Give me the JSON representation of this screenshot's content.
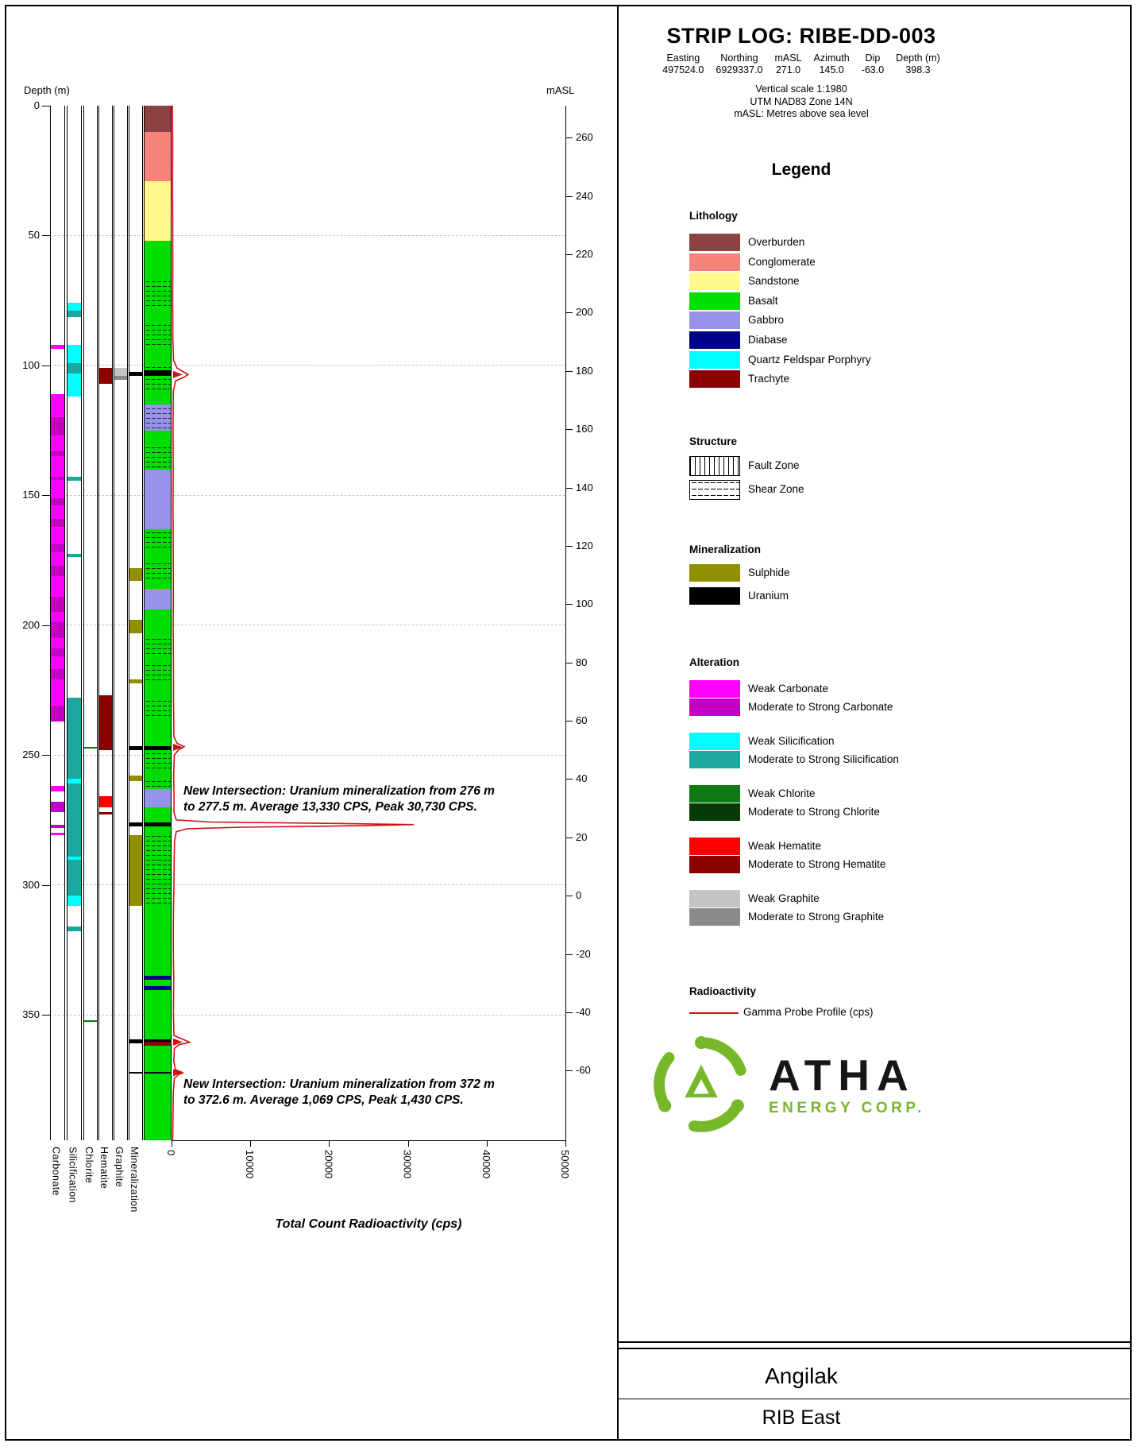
{
  "header": {
    "title": "STRIP LOG: RIBE-DD-003",
    "coords": [
      {
        "label": "Easting",
        "value": "497524.0"
      },
      {
        "label": "Northing",
        "value": "6929337.0"
      },
      {
        "label": "mASL",
        "value": "271.0"
      },
      {
        "label": "Azimuth",
        "value": "145.0"
      },
      {
        "label": "Dip",
        "value": "-63.0"
      },
      {
        "label": "Depth (m)",
        "value": "398.3"
      }
    ],
    "notes": [
      "Vertical scale 1:1980",
      "UTM NAD83 Zone 14N",
      "mASL: Metres above sea level"
    ]
  },
  "legend": {
    "title": "Legend",
    "lithology": {
      "header": "Lithology",
      "items": [
        {
          "label": "Overburden",
          "color": "#8C4243"
        },
        {
          "label": "Conglomerate",
          "color": "#F8837C"
        },
        {
          "label": "Sandstone",
          "color": "#FFF98E"
        },
        {
          "label": "Basalt",
          "color": "#00DD00"
        },
        {
          "label": "Gabbro",
          "color": "#9693E8"
        },
        {
          "label": "Diabase",
          "color": "#00008B"
        },
        {
          "label": "Quartz Feldspar Porphyry",
          "color": "#00FFFF"
        },
        {
          "label": "Trachyte",
          "color": "#8B0000"
        }
      ]
    },
    "structure": {
      "header": "Structure",
      "items": [
        {
          "label": "Fault Zone",
          "pattern": "fault"
        },
        {
          "label": "Shear Zone",
          "pattern": "shear"
        }
      ]
    },
    "mineralization": {
      "header": "Mineralization",
      "items": [
        {
          "label": "Sulphide",
          "color": "#8F8F00"
        },
        {
          "label": "Uranium",
          "color": "#000000"
        }
      ]
    },
    "alteration": {
      "header": "Alteration",
      "pairs": [
        {
          "key": "carbonate",
          "weak_label": "Weak Carbonate",
          "weak_color": "#FF00FF",
          "strong_label": "Moderate to Strong Carbonate",
          "strong_color": "#C300C3"
        },
        {
          "key": "silicification",
          "weak_label": "Weak Silicification",
          "weak_color": "#00FFFF",
          "strong_label": "Moderate to Strong Silicification",
          "strong_color": "#1CA79F"
        },
        {
          "key": "chlorite",
          "weak_label": "Weak Chlorite",
          "weak_color": "#0E7B12",
          "strong_label": "Moderate to Strong Chlorite",
          "strong_color": "#063A06"
        },
        {
          "key": "hematite",
          "weak_label": "Weak Hematite",
          "weak_color": "#FF0000",
          "strong_label": "Moderate to Strong Hematite",
          "strong_color": "#8B0000"
        },
        {
          "key": "graphite",
          "weak_label": "Weak Graphite",
          "weak_color": "#C4C4C4",
          "strong_label": "Moderate to Strong Graphite",
          "strong_color": "#8A8A8A"
        }
      ]
    },
    "radioactivity": {
      "header": "Radioactivity",
      "item_label": "Gamma Probe Profile (cps)",
      "line_color": "#CC1111"
    }
  },
  "logo": {
    "name": "ATHA",
    "subtitle": "ENERGY CORP.",
    "green": "#76B82A"
  },
  "footer": {
    "project": "Angilak",
    "area": "RIB East"
  },
  "chart_data": {
    "type": "strip-log",
    "depth_axis": {
      "label": "Depth (m)",
      "ticks": [
        0,
        50,
        100,
        150,
        200,
        250,
        300,
        350
      ],
      "max_depth": 398.3
    },
    "masl_axis": {
      "label": "mASL",
      "ticks": [
        260,
        240,
        220,
        200,
        180,
        160,
        140,
        120,
        100,
        80,
        60,
        40,
        20,
        0,
        -20,
        -40,
        -60
      ],
      "collar_masl": 271.0,
      "masl_per_m_depth": 0.891
    },
    "radioactivity_axis": {
      "label": "Total Count Radioactivity (cps)",
      "ticks": [
        0,
        10000,
        20000,
        30000,
        40000,
        50000
      ],
      "max": 50000
    },
    "track_labels": [
      "Carbonate",
      "Silicification",
      "Chlorite",
      "Hematite",
      "Graphite",
      "Mineralization"
    ],
    "lithology": [
      {
        "from": 0,
        "to": 10,
        "unit": "Overburden"
      },
      {
        "from": 10,
        "to": 29,
        "unit": "Conglomerate"
      },
      {
        "from": 29,
        "to": 52,
        "unit": "Sandstone"
      },
      {
        "from": 52,
        "to": 67,
        "unit": "Basalt"
      },
      {
        "from": 67,
        "to": 78,
        "unit": "Basalt",
        "shear": true
      },
      {
        "from": 78,
        "to": 84,
        "unit": "Basalt"
      },
      {
        "from": 84,
        "to": 93,
        "unit": "Basalt",
        "shear": true
      },
      {
        "from": 93,
        "to": 100,
        "unit": "Basalt"
      },
      {
        "from": 100,
        "to": 102,
        "unit": "Basalt",
        "shear": true
      },
      {
        "from": 102,
        "to": 104,
        "unit": "Uranium"
      },
      {
        "from": 104,
        "to": 110,
        "unit": "Basalt",
        "shear": true
      },
      {
        "from": 110,
        "to": 115,
        "unit": "Basalt"
      },
      {
        "from": 115,
        "to": 125,
        "unit": "Gabbro",
        "shear": true
      },
      {
        "from": 125,
        "to": 131,
        "unit": "Basalt"
      },
      {
        "from": 131,
        "to": 140,
        "unit": "Basalt",
        "shear": true
      },
      {
        "from": 140,
        "to": 163,
        "unit": "Gabbro"
      },
      {
        "from": 163,
        "to": 171,
        "unit": "Basalt",
        "shear": true
      },
      {
        "from": 171,
        "to": 175,
        "unit": "Basalt"
      },
      {
        "from": 175,
        "to": 183,
        "unit": "Basalt",
        "shear": true
      },
      {
        "from": 183,
        "to": 186,
        "unit": "Basalt"
      },
      {
        "from": 186,
        "to": 194,
        "unit": "Gabbro"
      },
      {
        "from": 194,
        "to": 204,
        "unit": "Basalt"
      },
      {
        "from": 204,
        "to": 212,
        "unit": "Basalt",
        "shear": true
      },
      {
        "from": 212,
        "to": 215,
        "unit": "Basalt"
      },
      {
        "from": 215,
        "to": 222,
        "unit": "Basalt",
        "shear": true
      },
      {
        "from": 222,
        "to": 228,
        "unit": "Basalt"
      },
      {
        "from": 228,
        "to": 236,
        "unit": "Basalt",
        "shear": true
      },
      {
        "from": 236,
        "to": 246.5,
        "unit": "Basalt"
      },
      {
        "from": 246.5,
        "to": 248,
        "unit": "Uranium"
      },
      {
        "from": 248,
        "to": 256,
        "unit": "Basalt",
        "shear": true
      },
      {
        "from": 256,
        "to": 260,
        "unit": "Basalt"
      },
      {
        "from": 260,
        "to": 263,
        "unit": "Basalt",
        "shear": true
      },
      {
        "from": 263,
        "to": 270,
        "unit": "Gabbro"
      },
      {
        "from": 270,
        "to": 276,
        "unit": "Basalt"
      },
      {
        "from": 276,
        "to": 277.5,
        "unit": "Uranium"
      },
      {
        "from": 277.5,
        "to": 281,
        "unit": "Basalt"
      },
      {
        "from": 281,
        "to": 308,
        "unit": "Basalt",
        "shear": true
      },
      {
        "from": 308,
        "to": 335,
        "unit": "Basalt"
      },
      {
        "from": 335,
        "to": 336.5,
        "unit": "Diabase"
      },
      {
        "from": 336.5,
        "to": 339,
        "unit": "Basalt"
      },
      {
        "from": 339,
        "to": 340.5,
        "unit": "Diabase"
      },
      {
        "from": 340.5,
        "to": 359.5,
        "unit": "Basalt"
      },
      {
        "from": 359.5,
        "to": 360.5,
        "unit": "Uranium"
      },
      {
        "from": 360.5,
        "to": 362,
        "unit": "Trachyte"
      },
      {
        "from": 362,
        "to": 372,
        "unit": "Basalt"
      },
      {
        "from": 372,
        "to": 372.6,
        "unit": "Uranium"
      },
      {
        "from": 372.6,
        "to": 398.3,
        "unit": "Basalt"
      }
    ],
    "tracks": {
      "carbonate": [
        {
          "from": 92,
          "to": 93.5,
          "grade": "weak"
        },
        {
          "from": 111,
          "to": 120,
          "grade": "weak"
        },
        {
          "from": 120,
          "to": 127,
          "grade": "strong"
        },
        {
          "from": 127,
          "to": 133,
          "grade": "weak"
        },
        {
          "from": 133,
          "to": 135,
          "grade": "strong"
        },
        {
          "from": 135,
          "to": 143,
          "grade": "weak"
        },
        {
          "from": 143,
          "to": 144.2,
          "grade": "strong"
        },
        {
          "from": 144.2,
          "to": 151,
          "grade": "weak"
        },
        {
          "from": 151,
          "to": 154,
          "grade": "strong"
        },
        {
          "from": 154,
          "to": 159,
          "grade": "weak"
        },
        {
          "from": 159,
          "to": 162,
          "grade": "strong"
        },
        {
          "from": 162,
          "to": 169,
          "grade": "weak"
        },
        {
          "from": 169,
          "to": 172,
          "grade": "strong"
        },
        {
          "from": 172,
          "to": 177,
          "grade": "weak"
        },
        {
          "from": 177,
          "to": 181,
          "grade": "strong"
        },
        {
          "from": 181,
          "to": 189,
          "grade": "weak"
        },
        {
          "from": 189,
          "to": 195,
          "grade": "strong"
        },
        {
          "from": 195,
          "to": 199,
          "grade": "weak"
        },
        {
          "from": 199,
          "to": 205,
          "grade": "strong"
        },
        {
          "from": 205,
          "to": 209,
          "grade": "weak"
        },
        {
          "from": 209,
          "to": 212,
          "grade": "strong"
        },
        {
          "from": 212,
          "to": 217,
          "grade": "weak"
        },
        {
          "from": 217,
          "to": 221,
          "grade": "strong"
        },
        {
          "from": 221,
          "to": 231,
          "grade": "weak"
        },
        {
          "from": 231,
          "to": 237,
          "grade": "strong"
        },
        {
          "from": 262,
          "to": 264,
          "grade": "weak"
        },
        {
          "from": 268,
          "to": 272,
          "grade": "strong"
        },
        {
          "from": 277,
          "to": 278,
          "grade": "strong"
        },
        {
          "from": 280,
          "to": 281,
          "grade": "weak"
        }
      ],
      "silicification": [
        {
          "from": 76,
          "to": 79,
          "grade": "weak"
        },
        {
          "from": 79,
          "to": 81.5,
          "grade": "strong"
        },
        {
          "from": 92,
          "to": 99,
          "grade": "weak"
        },
        {
          "from": 99,
          "to": 103,
          "grade": "strong"
        },
        {
          "from": 103,
          "to": 112,
          "grade": "weak"
        },
        {
          "from": 143,
          "to": 144.5,
          "grade": "strong"
        },
        {
          "from": 172.5,
          "to": 173.8,
          "grade": "strong"
        },
        {
          "from": 228,
          "to": 259,
          "grade": "strong"
        },
        {
          "from": 259,
          "to": 261,
          "grade": "weak"
        },
        {
          "from": 261,
          "to": 289,
          "grade": "strong"
        },
        {
          "from": 289,
          "to": 290.2,
          "grade": "weak"
        },
        {
          "from": 290.2,
          "to": 304,
          "grade": "strong"
        },
        {
          "from": 304,
          "to": 308,
          "grade": "weak"
        },
        {
          "from": 316,
          "to": 318,
          "grade": "strong"
        }
      ],
      "chlorite": [
        {
          "from": 247,
          "to": 247.6,
          "grade": "weak"
        },
        {
          "from": 352,
          "to": 352.6,
          "grade": "weak"
        }
      ],
      "hematite": [
        {
          "from": 101,
          "to": 107,
          "grade": "strong"
        },
        {
          "from": 227,
          "to": 248,
          "grade": "strong"
        },
        {
          "from": 266,
          "to": 270,
          "grade": "weak"
        },
        {
          "from": 272,
          "to": 273,
          "grade": "strong"
        }
      ],
      "graphite": [
        {
          "from": 101,
          "to": 104,
          "grade": "weak"
        },
        {
          "from": 104,
          "to": 105.5,
          "grade": "strong"
        }
      ],
      "mineralization": [
        {
          "from": 102.5,
          "to": 104,
          "kind": "uranium"
        },
        {
          "from": 178,
          "to": 183,
          "kind": "sulphide"
        },
        {
          "from": 198,
          "to": 203,
          "kind": "sulphide"
        },
        {
          "from": 221,
          "to": 222.5,
          "kind": "sulphide"
        },
        {
          "from": 246.5,
          "to": 248,
          "kind": "uranium"
        },
        {
          "from": 258,
          "to": 260,
          "kind": "sulphide"
        },
        {
          "from": 276,
          "to": 277.5,
          "kind": "uranium"
        },
        {
          "from": 281,
          "to": 308,
          "kind": "sulphide"
        },
        {
          "from": 359.5,
          "to": 361,
          "kind": "uranium"
        },
        {
          "from": 372,
          "to": 372.6,
          "kind": "uranium"
        }
      ]
    },
    "gamma_profile": [
      [
        0,
        120
      ],
      [
        15,
        150
      ],
      [
        30,
        130
      ],
      [
        45,
        150
      ],
      [
        60,
        160
      ],
      [
        75,
        150
      ],
      [
        90,
        170
      ],
      [
        98,
        250
      ],
      [
        101,
        700
      ],
      [
        102.5,
        1500
      ],
      [
        103.5,
        2100
      ],
      [
        104.5,
        1600
      ],
      [
        106,
        500
      ],
      [
        110,
        220
      ],
      [
        125,
        190
      ],
      [
        140,
        210
      ],
      [
        155,
        190
      ],
      [
        170,
        210
      ],
      [
        185,
        230
      ],
      [
        200,
        210
      ],
      [
        215,
        240
      ],
      [
        230,
        250
      ],
      [
        243,
        300
      ],
      [
        245.5,
        700
      ],
      [
        246.8,
        1600
      ],
      [
        248,
        900
      ],
      [
        250,
        350
      ],
      [
        258,
        260
      ],
      [
        266,
        320
      ],
      [
        272,
        300
      ],
      [
        275,
        600
      ],
      [
        275.8,
        5000
      ],
      [
        276.4,
        22000
      ],
      [
        276.8,
        30730
      ],
      [
        277.2,
        24000
      ],
      [
        277.8,
        9000
      ],
      [
        278.4,
        2000
      ],
      [
        279.5,
        600
      ],
      [
        283,
        380
      ],
      [
        290,
        330
      ],
      [
        300,
        300
      ],
      [
        310,
        240
      ],
      [
        320,
        220
      ],
      [
        330,
        240
      ],
      [
        336,
        280
      ],
      [
        341,
        260
      ],
      [
        350,
        240
      ],
      [
        358,
        300
      ],
      [
        359.8,
        1700
      ],
      [
        360.6,
        2300
      ],
      [
        361.6,
        900
      ],
      [
        363,
        350
      ],
      [
        368,
        280
      ],
      [
        371.2,
        500
      ],
      [
        372,
        1200
      ],
      [
        372.4,
        1430
      ],
      [
        373,
        900
      ],
      [
        374.5,
        350
      ],
      [
        380,
        220
      ],
      [
        390,
        180
      ],
      [
        398.3,
        150
      ]
    ],
    "spike_arrows": [
      103.5,
      247,
      360.5,
      372.3
    ],
    "annotations": [
      {
        "at_depth": 261,
        "lines": [
          "New Intersection: Uranium mineralization from 276 m",
          "to 277.5 m. Average 13,330 CPS, Peak 30,730 CPS."
        ]
      },
      {
        "at_depth": 374,
        "lines": [
          "New Intersection: Uranium mineralization from 372 m",
          "to 372.6 m. Average 1,069 CPS, Peak 1,430 CPS."
        ]
      }
    ]
  }
}
